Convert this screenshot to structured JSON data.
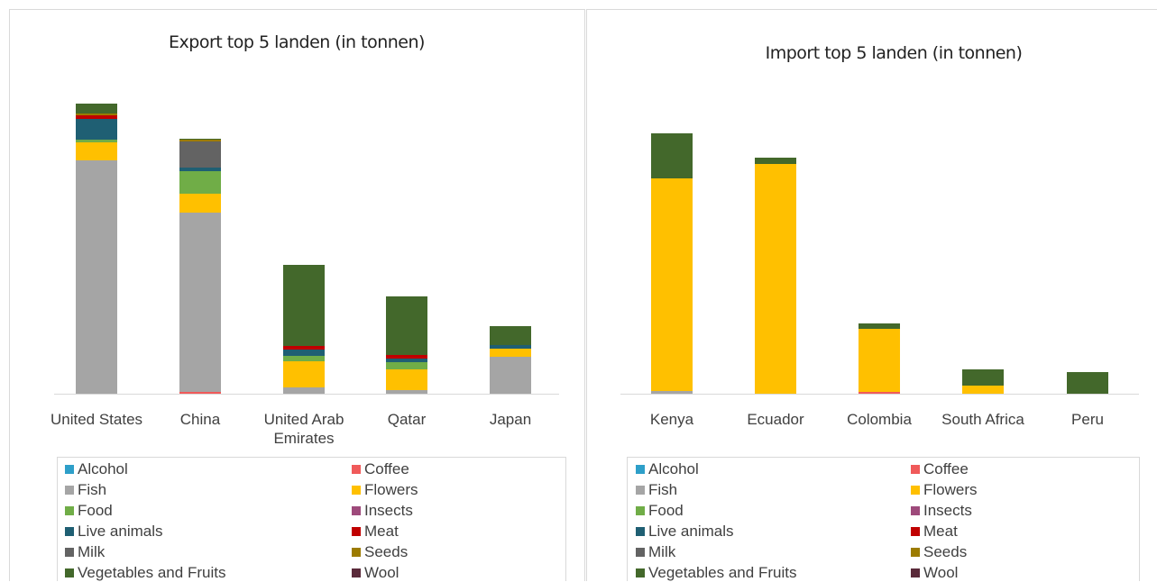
{
  "chart_data": [
    {
      "type": "bar",
      "stacked": true,
      "title": "Export top 5 landen (in tonnen)",
      "categories": [
        "United States",
        "China",
        "United Arab Emirates",
        "Qatar",
        "Japan"
      ],
      "ylim": [
        0,
        330
      ],
      "series": [
        {
          "name": "Alcohol",
          "color": "#2e9fc9",
          "values": [
            0,
            0,
            0,
            0,
            0
          ]
        },
        {
          "name": "Coffee",
          "color": "#f05a5a",
          "values": [
            0,
            2,
            0,
            0,
            0
          ]
        },
        {
          "name": "Fish",
          "color": "#a5a5a5",
          "values": [
            259,
            199,
            7,
            4,
            41
          ]
        },
        {
          "name": "Flowers",
          "color": "#ffc000",
          "values": [
            20,
            21,
            29,
            23,
            9
          ]
        },
        {
          "name": "Food",
          "color": "#70ad47",
          "values": [
            3,
            25,
            6,
            8,
            0
          ]
        },
        {
          "name": "Insects",
          "color": "#9e4a7b",
          "values": [
            0,
            0,
            0,
            0,
            0
          ]
        },
        {
          "name": "Live animals",
          "color": "#1f5f73",
          "values": [
            23,
            4,
            7,
            4,
            4
          ]
        },
        {
          "name": "Meat",
          "color": "#c00000",
          "values": [
            4,
            0,
            4,
            4,
            0
          ]
        },
        {
          "name": "Milk",
          "color": "#636363",
          "values": [
            0,
            29,
            0,
            0,
            0
          ]
        },
        {
          "name": "Seeds",
          "color": "#9c7b00",
          "values": [
            2,
            2,
            0,
            0,
            0
          ]
        },
        {
          "name": "Vegetables and Fruits",
          "color": "#43682b",
          "values": [
            11,
            1,
            90,
            65,
            21
          ]
        },
        {
          "name": "Wool",
          "color": "#5a2a3a",
          "values": [
            0,
            0,
            0,
            0,
            0
          ]
        }
      ]
    },
    {
      "type": "bar",
      "stacked": true,
      "title": "Import top 5 landen (in tonnen)",
      "categories": [
        "Kenya",
        "Ecuador",
        "Colombia",
        "South Africa",
        "Peru"
      ],
      "ylim": [
        0,
        330
      ],
      "series": [
        {
          "name": "Alcohol",
          "color": "#2e9fc9",
          "values": [
            0,
            0,
            0,
            0,
            0
          ]
        },
        {
          "name": "Coffee",
          "color": "#f05a5a",
          "values": [
            0,
            0,
            2,
            0,
            0
          ]
        },
        {
          "name": "Fish",
          "color": "#a5a5a5",
          "values": [
            3,
            0,
            0,
            0,
            0
          ]
        },
        {
          "name": "Flowers",
          "color": "#ffc000",
          "values": [
            236,
            255,
            70,
            9,
            0
          ]
        },
        {
          "name": "Food",
          "color": "#70ad47",
          "values": [
            0,
            0,
            0,
            0,
            0
          ]
        },
        {
          "name": "Insects",
          "color": "#9e4a7b",
          "values": [
            0,
            0,
            0,
            0,
            0
          ]
        },
        {
          "name": "Live animals",
          "color": "#1f5f73",
          "values": [
            0,
            0,
            0,
            0,
            0
          ]
        },
        {
          "name": "Meat",
          "color": "#c00000",
          "values": [
            0,
            0,
            0,
            0,
            0
          ]
        },
        {
          "name": "Milk",
          "color": "#636363",
          "values": [
            0,
            0,
            0,
            0,
            0
          ]
        },
        {
          "name": "Seeds",
          "color": "#9c7b00",
          "values": [
            0,
            0,
            0,
            0,
            0
          ]
        },
        {
          "name": "Vegetables and Fruits",
          "color": "#43682b",
          "values": [
            50,
            7,
            6,
            18,
            24
          ]
        },
        {
          "name": "Wool",
          "color": "#5a2a3a",
          "values": [
            0,
            0,
            0,
            0,
            0
          ]
        }
      ]
    }
  ]
}
